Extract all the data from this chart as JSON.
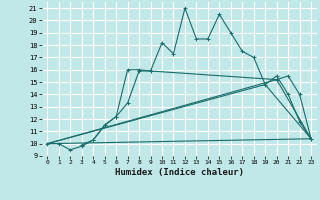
{
  "xlabel": "Humidex (Indice chaleur)",
  "bg_color": "#c0e8e8",
  "grid_color": "#ffffff",
  "line_color": "#1a6b6b",
  "xlim": [
    -0.5,
    23.5
  ],
  "ylim": [
    9,
    21.5
  ],
  "xticks": [
    0,
    1,
    2,
    3,
    4,
    5,
    6,
    7,
    8,
    9,
    10,
    11,
    12,
    13,
    14,
    15,
    16,
    17,
    18,
    19,
    20,
    21,
    22,
    23
  ],
  "yticks": [
    9,
    10,
    11,
    12,
    13,
    14,
    15,
    16,
    17,
    18,
    19,
    20,
    21
  ],
  "series1_x": [
    0,
    1,
    2,
    3,
    4,
    5,
    6,
    7,
    8,
    9,
    10,
    11,
    12,
    13,
    14,
    15,
    16,
    17,
    18,
    19,
    20,
    21,
    22,
    23
  ],
  "series1_y": [
    10.0,
    10.0,
    9.5,
    9.8,
    10.3,
    11.5,
    12.2,
    13.3,
    15.9,
    15.9,
    18.2,
    17.3,
    21.0,
    18.5,
    18.5,
    20.5,
    19.0,
    17.5,
    17.0,
    14.8,
    15.5,
    14.0,
    11.8,
    10.4
  ],
  "series2_x": [
    3,
    4,
    5,
    6,
    7,
    8,
    9,
    20,
    21,
    22,
    23
  ],
  "series2_y": [
    9.9,
    10.3,
    11.5,
    12.2,
    16.0,
    16.0,
    15.9,
    15.2,
    15.5,
    14.0,
    10.4
  ],
  "series3_x": [
    0,
    23
  ],
  "series3_y": [
    10.0,
    10.4
  ],
  "series4_x": [
    0,
    19,
    23
  ],
  "series4_y": [
    10.0,
    14.8,
    10.4
  ],
  "series5_x": [
    0,
    20,
    23
  ],
  "series5_y": [
    10.0,
    15.2,
    10.4
  ]
}
